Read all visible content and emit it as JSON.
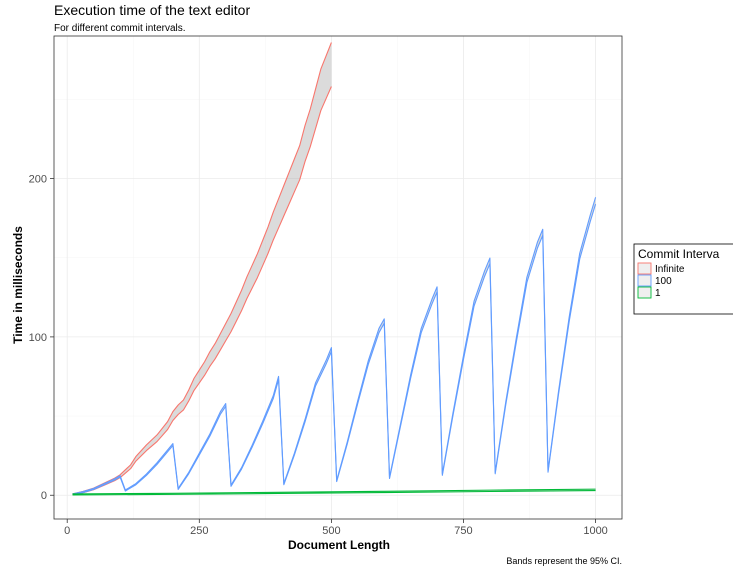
{
  "chart_data": {
    "type": "line",
    "title": "Execution time of the text editor",
    "subtitle": "For different commit intervals.",
    "caption": "Bands represent the 95% CI.",
    "xlabel": "Document Length",
    "ylabel": "Time in milliseconds",
    "xlim": [
      -25,
      1050
    ],
    "ylim": [
      -15,
      290
    ],
    "x_ticks": [
      0,
      250,
      500,
      750,
      1000
    ],
    "x_tick_labels": [
      "0",
      "250",
      "500",
      "750",
      "1000"
    ],
    "y_ticks": [
      0,
      100,
      200
    ],
    "y_tick_labels": [
      "0",
      "100",
      "200"
    ],
    "grid": true,
    "legend": {
      "title": "Commit Interva",
      "placement": "right",
      "entries": [
        "Infinite",
        "100",
        "1"
      ]
    },
    "series": [
      {
        "name": "Infinite",
        "color": "#f8766d",
        "band_width": 0.05,
        "x": [
          10,
          30,
          50,
          70,
          90,
          100,
          110,
          120,
          130,
          150,
          170,
          190,
          200,
          210,
          220,
          230,
          240,
          250,
          260,
          270,
          280,
          290,
          300,
          310,
          320,
          330,
          340,
          350,
          360,
          370,
          380,
          390,
          400,
          410,
          420,
          430,
          440,
          450,
          460,
          470,
          480,
          490,
          500
        ],
        "y": [
          0.5,
          2,
          4,
          7,
          10,
          12,
          15,
          18,
          23,
          30,
          36,
          44,
          50,
          54,
          57,
          63,
          70,
          75,
          80,
          86,
          91,
          97,
          103,
          109,
          116,
          123,
          131,
          138,
          145,
          153,
          161,
          170,
          178,
          186,
          194,
          202,
          210,
          222,
          232,
          244,
          256,
          264,
          272
        ]
      },
      {
        "name": "100",
        "color": "#619cff",
        "band_width": 0.01,
        "x": [
          10,
          30,
          50,
          70,
          90,
          100,
          110,
          130,
          150,
          170,
          190,
          200,
          210,
          230,
          250,
          270,
          290,
          300,
          310,
          330,
          350,
          370,
          390,
          400,
          410,
          430,
          450,
          470,
          490,
          500,
          510,
          530,
          550,
          570,
          590,
          600,
          610,
          630,
          650,
          670,
          690,
          700,
          710,
          730,
          750,
          770,
          790,
          800,
          810,
          830,
          850,
          870,
          890,
          900,
          910,
          930,
          950,
          970,
          990,
          1000
        ],
        "y": [
          0.5,
          2,
          4,
          7,
          10,
          12,
          3,
          7,
          13,
          20,
          28,
          32,
          4,
          14,
          26,
          38,
          52,
          57,
          6,
          17,
          31,
          46,
          62,
          74,
          7,
          26,
          47,
          70,
          84,
          92,
          9,
          33,
          59,
          84,
          104,
          110,
          11,
          43,
          75,
          104,
          122,
          130,
          13,
          51,
          87,
          121,
          140,
          148,
          14,
          58,
          98,
          136,
          158,
          166,
          15,
          65,
          111,
          151,
          175,
          186
        ]
      },
      {
        "name": "1",
        "color": "#00ba38",
        "band_width": 0.05,
        "x": [
          10,
          200,
          400,
          600,
          800,
          1000
        ],
        "y": [
          0.5,
          0.9,
          1.5,
          2.1,
          2.8,
          3.4
        ]
      }
    ]
  }
}
